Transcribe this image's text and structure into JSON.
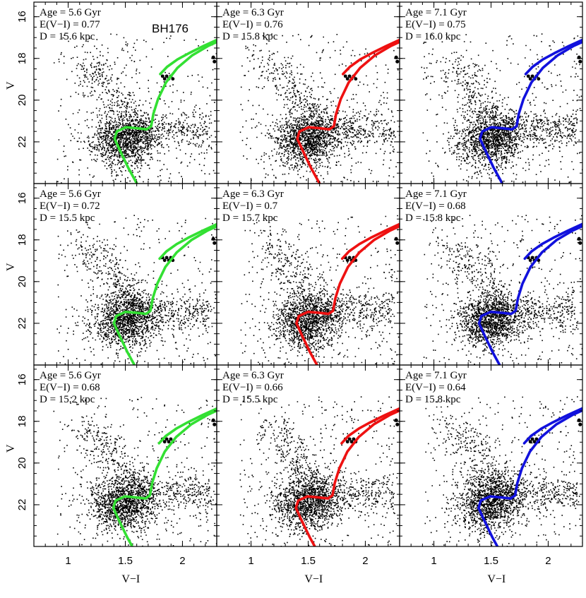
{
  "chart_data": {
    "type": "scatter",
    "description_type": "color-magnitude diagram grid with isochrone fits",
    "cluster_name": "BH176",
    "xlabel": "V−I",
    "ylabel": "V",
    "xlim": [
      0.7,
      2.3
    ],
    "ylim": [
      24.0,
      15.3
    ],
    "x_inverted": false,
    "y_inverted": true,
    "xticks": [
      1,
      1.5,
      2
    ],
    "xtick_labels": [
      "1",
      "1.5",
      "2"
    ],
    "yticks": [
      16,
      18,
      20,
      22
    ],
    "ytick_labels": [
      "16",
      "18",
      "20",
      "22"
    ],
    "rows": 3,
    "cols": 3,
    "column_colors": [
      "#33e033",
      "#ee1111",
      "#1111dd"
    ],
    "panels": [
      {
        "row": 0,
        "col": 0,
        "lines": [
          "Age = 5.6 Gyr",
          "E(V−I) = 0.77",
          "D = 15.6 kpc"
        ],
        "ebv": 0.77,
        "age": 5.6
      },
      {
        "row": 0,
        "col": 1,
        "lines": [
          "Age = 6.3 Gyr",
          "E(V−I) = 0.76",
          "D = 15.8 kpc"
        ],
        "ebv": 0.76,
        "age": 6.3
      },
      {
        "row": 0,
        "col": 2,
        "lines": [
          "Age = 7.1 Gyr",
          "E(V−I) = 0.75",
          "D = 16.0 kpc"
        ],
        "ebv": 0.75,
        "age": 7.1
      },
      {
        "row": 1,
        "col": 0,
        "lines": [
          "Age = 5.6 Gyr",
          "E(V−I) = 0.72",
          "D = 15.5 kpc"
        ],
        "ebv": 0.72,
        "age": 5.6
      },
      {
        "row": 1,
        "col": 1,
        "lines": [
          "Age = 6.3 Gyr",
          "E(V−I) = 0.7",
          "D = 15.7 kpc"
        ],
        "ebv": 0.7,
        "age": 6.3
      },
      {
        "row": 1,
        "col": 2,
        "lines": [
          "Age = 7.1 Gyr",
          "E(V−I) = 0.68",
          "D = 15.8 kpc"
        ],
        "ebv": 0.68,
        "age": 7.1
      },
      {
        "row": 2,
        "col": 0,
        "lines": [
          "Age = 5.6 Gyr",
          "E(V−I) = 0.68",
          "D = 15.2 kpc"
        ],
        "ebv": 0.68,
        "age": 5.6
      },
      {
        "row": 2,
        "col": 1,
        "lines": [
          "Age = 6.3 Gyr",
          "E(V−I) = 0.66",
          "D = 15.5 kpc"
        ],
        "ebv": 0.66,
        "age": 6.3
      },
      {
        "row": 2,
        "col": 2,
        "lines": [
          "Age = 7.1 Gyr",
          "E(V−I) = 0.64",
          "D = 15.8 kpc"
        ],
        "ebv": 0.64,
        "age": 7.1
      }
    ],
    "isochrone_shape": {
      "ms_branch": [
        [
          1.6,
          24.2
        ],
        [
          1.52,
          23.4
        ],
        [
          1.45,
          22.6
        ],
        [
          1.4,
          22.0
        ],
        [
          1.42,
          21.65
        ],
        [
          1.5,
          21.45
        ],
        [
          1.6,
          21.5
        ],
        [
          1.68,
          21.55
        ],
        [
          1.72,
          21.4
        ]
      ],
      "rgb_branch": [
        [
          1.72,
          21.4
        ],
        [
          1.74,
          20.8
        ],
        [
          1.78,
          20.1
        ],
        [
          1.85,
          19.3
        ],
        [
          1.95,
          18.6
        ],
        [
          2.08,
          18.0
        ],
        [
          2.22,
          17.55
        ],
        [
          2.32,
          17.3
        ]
      ],
      "agb_branch": [
        [
          1.8,
          18.9
        ],
        [
          1.86,
          18.55
        ],
        [
          1.95,
          18.2
        ],
        [
          2.05,
          17.9
        ],
        [
          2.18,
          17.55
        ],
        [
          2.32,
          17.2
        ]
      ],
      "red_clump": [
        1.88,
        18.9
      ],
      "bright_stars": [
        [
          2.27,
          17.95
        ],
        [
          2.28,
          18.15
        ]
      ]
    },
    "star_field": {
      "count_per_panel": 2200,
      "main_concentration_center": [
        1.45,
        21.9
      ],
      "xrange": [
        0.9,
        2.3
      ],
      "yrange": [
        16.8,
        24.0
      ]
    }
  }
}
